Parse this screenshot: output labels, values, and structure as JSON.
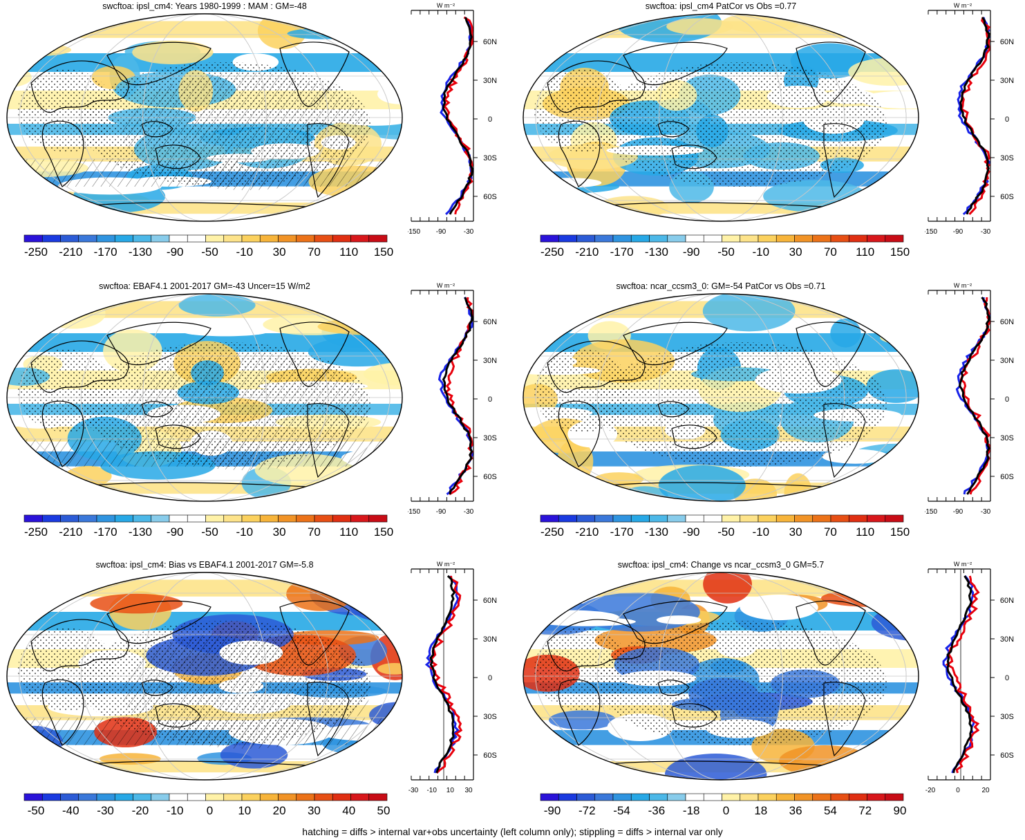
{
  "colors": {
    "neg_scale": [
      "#2a12d9",
      "#1a3ae0",
      "#2c5bd6",
      "#3a78da",
      "#2f94e0",
      "#27a8e6",
      "#4cb8e8",
      "#88cceb"
    ],
    "pos_scale": [
      "#fff2a8",
      "#fde38a",
      "#fbd15e",
      "#f7b43a",
      "#f19326",
      "#ec7218",
      "#e74f14",
      "#e02f12",
      "#d8171b",
      "#c80c16"
    ],
    "land_outline": "#000000",
    "obs_line": "#000000",
    "model_line": "#e8000b",
    "ref_line": "#1722e8"
  },
  "panels": [
    {
      "id": "top-left",
      "title": "swcftoa: ipsl_cm4: Years 1980-1999 : MAM : GM=-48",
      "colorbar_labels": [
        "-250",
        "-210",
        "-170",
        "-130",
        "-90",
        "-50",
        "-10",
        "30",
        "70",
        "110",
        "150"
      ],
      "profile_unit": "W m⁻²",
      "profile_xticks": [
        "-150",
        "-90",
        "-30"
      ],
      "profile_yticks": [
        "60N",
        "30N",
        "0",
        "30S",
        "60S"
      ],
      "hatched": true
    },
    {
      "id": "top-right",
      "title": "swcftoa: ipsl_cm4 PatCor vs Obs =0.77",
      "colorbar_labels": [
        "-250",
        "-210",
        "-170",
        "-130",
        "-90",
        "-50",
        "-10",
        "30",
        "70",
        "110",
        "150"
      ],
      "profile_unit": "W m⁻²",
      "profile_xticks": [
        "-150",
        "-90",
        "-30"
      ],
      "profile_yticks": [
        "60N",
        "30N",
        "0",
        "30S",
        "60S"
      ],
      "hatched": false
    },
    {
      "id": "mid-left",
      "title": "swcftoa: EBAF4.1 2001-2017 GM=-43 Uncer=15 W/m2",
      "colorbar_labels": [
        "-250",
        "-210",
        "-170",
        "-130",
        "-90",
        "-50",
        "-10",
        "30",
        "70",
        "110",
        "150"
      ],
      "profile_unit": "W m⁻²",
      "profile_xticks": [
        "-150",
        "-90",
        "-30"
      ],
      "profile_yticks": [
        "60N",
        "30N",
        "0",
        "30S",
        "60S"
      ],
      "hatched": true
    },
    {
      "id": "mid-right",
      "title": "swcftoa: ncar_ccsm3_0: GM=-54 PatCor vs Obs =0.71",
      "colorbar_labels": [
        "-250",
        "-210",
        "-170",
        "-130",
        "-90",
        "-50",
        "-10",
        "30",
        "70",
        "110",
        "150"
      ],
      "profile_unit": "W m⁻²",
      "profile_xticks": [
        "-150",
        "-90",
        "-30"
      ],
      "profile_yticks": [
        "60N",
        "30N",
        "0",
        "30S",
        "60S"
      ],
      "hatched": false
    },
    {
      "id": "bottom-left",
      "title": "swcftoa: ipsl_cm4: Bias vs EBAF4.1 2001-2017 GM=-5.8",
      "colorbar_labels": [
        "-50",
        "-40",
        "-30",
        "-20",
        "-10",
        "0",
        "10",
        "20",
        "30",
        "40",
        "50"
      ],
      "profile_unit": "W m⁻²",
      "profile_xticks": [
        "-30",
        "-10",
        "10",
        "30"
      ],
      "profile_yticks": [
        "60N",
        "30N",
        "0",
        "30S",
        "60S"
      ],
      "hatched": true
    },
    {
      "id": "bottom-right",
      "title": "swcftoa: ipsl_cm4: Change vs ncar_ccsm3_0 GM=5.7",
      "colorbar_labels": [
        "-90",
        "-72",
        "-54",
        "-36",
        "-18",
        "0",
        "18",
        "36",
        "54",
        "72",
        "90"
      ],
      "profile_unit": "W m⁻²",
      "profile_xticks": [
        "-20",
        "0",
        "20"
      ],
      "profile_yticks": [
        "60N",
        "30N",
        "0",
        "30S",
        "60S"
      ],
      "hatched": false
    }
  ],
  "footnote": "hatching = diffs > internal var+obs uncertainty (left column only); stippling = diffs > internal var only"
}
